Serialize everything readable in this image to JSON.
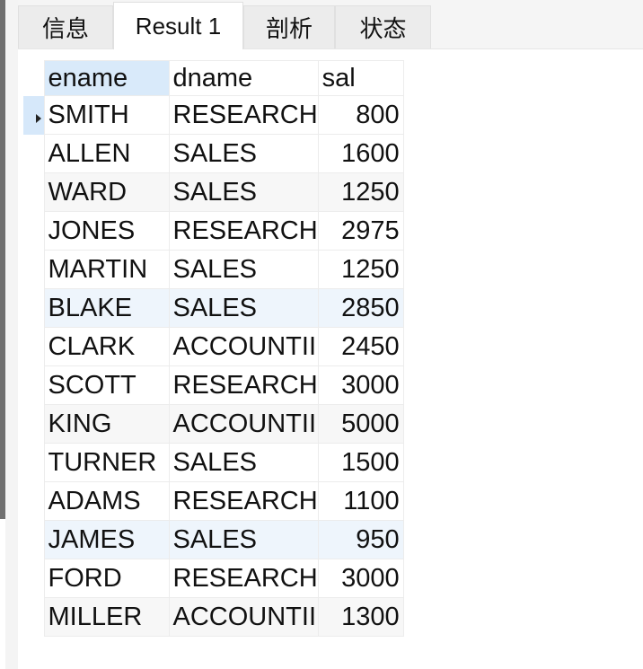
{
  "tabs": [
    "信息",
    "Result 1",
    "剖析",
    "状态"
  ],
  "active_tab": "Result 1",
  "columns": [
    "ename",
    "dname",
    "sal"
  ],
  "rows": [
    {
      "ename": "SMITH",
      "dname": "RESEARCH",
      "sal": "800"
    },
    {
      "ename": "ALLEN",
      "dname": "SALES",
      "sal": "1600"
    },
    {
      "ename": "WARD",
      "dname": "SALES",
      "sal": "1250"
    },
    {
      "ename": "JONES",
      "dname": "RESEARCH",
      "sal": "2975"
    },
    {
      "ename": "MARTIN",
      "dname": "SALES",
      "sal": "1250"
    },
    {
      "ename": "BLAKE",
      "dname": "SALES",
      "sal": "2850"
    },
    {
      "ename": "CLARK",
      "dname": "ACCOUNTII",
      "sal": "2450"
    },
    {
      "ename": "SCOTT",
      "dname": "RESEARCH",
      "sal": "3000"
    },
    {
      "ename": "KING",
      "dname": "ACCOUNTII",
      "sal": "5000"
    },
    {
      "ename": "TURNER",
      "dname": "SALES",
      "sal": "1500"
    },
    {
      "ename": "ADAMS",
      "dname": "RESEARCH",
      "sal": "1100"
    },
    {
      "ename": "JAMES",
      "dname": "SALES",
      "sal": "950"
    },
    {
      "ename": "FORD",
      "dname": "RESEARCH",
      "sal": "3000"
    },
    {
      "ename": "MILLER",
      "dname": "ACCOUNTII",
      "sal": "1300"
    }
  ],
  "current_row_index": 0,
  "colors": {
    "selected_header": "#d9eafa",
    "row_indicator": "#d6e8fa",
    "row_alt": "#f7f7f7",
    "row_highlight": "#eef5fc"
  },
  "icons": {
    "row_indicator": "triangle-right-icon"
  }
}
